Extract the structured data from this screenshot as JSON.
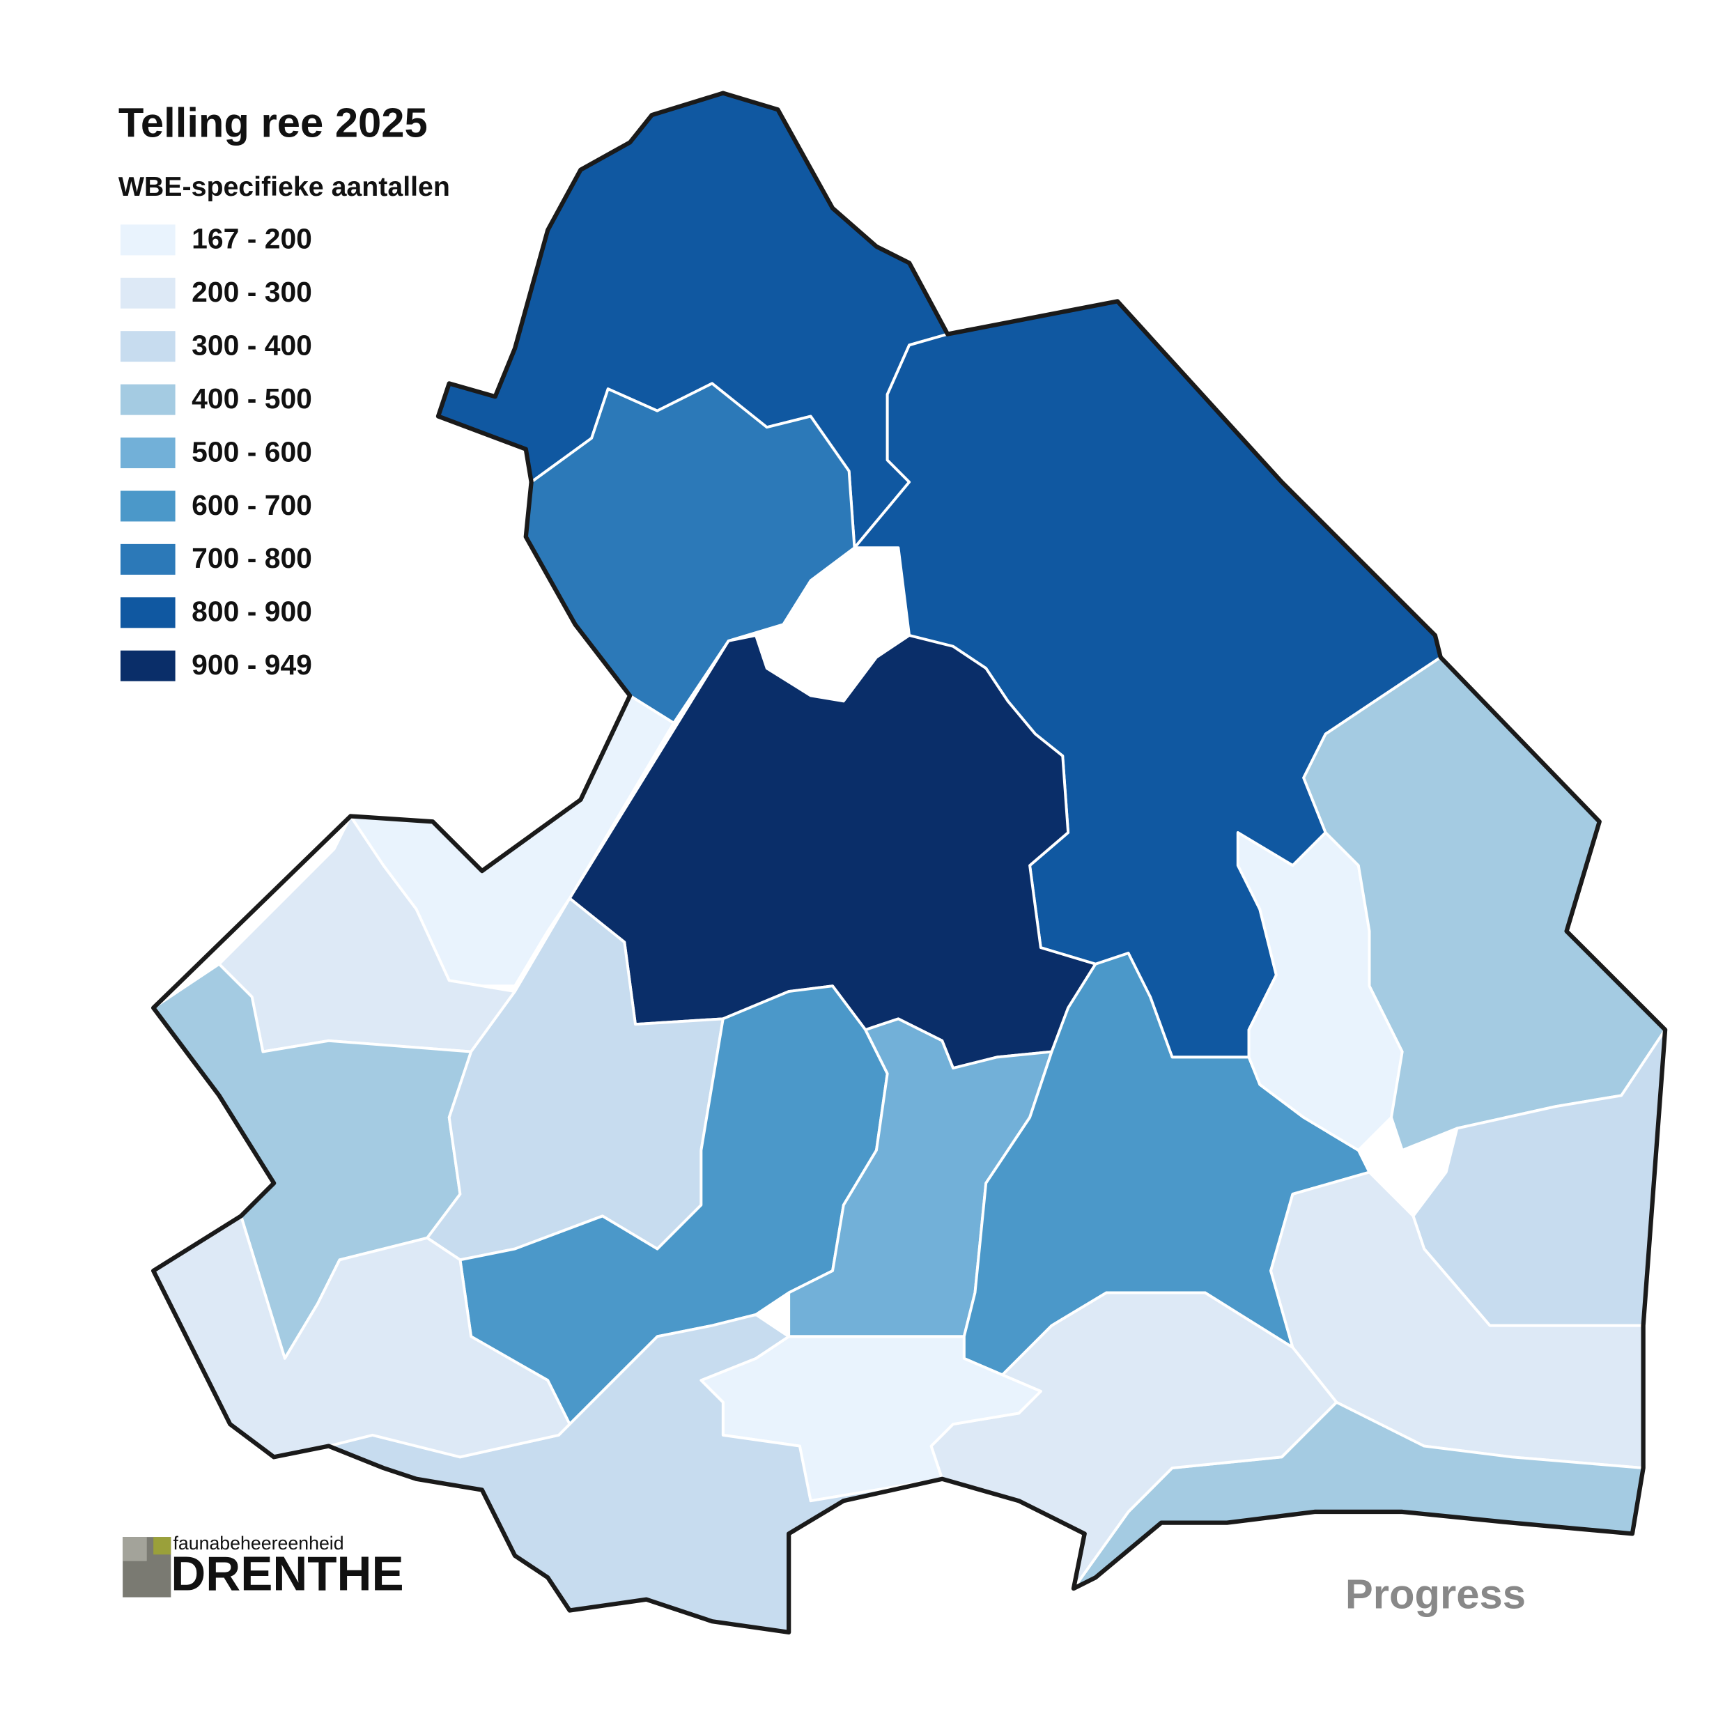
{
  "title": "Telling ree 2025",
  "subtitle": "WBE-specifieke aantallen",
  "legend": [
    {
      "label": "167 - 200",
      "color": "#e9f3fd"
    },
    {
      "label": "200 - 300",
      "color": "#dde9f6"
    },
    {
      "label": "300 - 400",
      "color": "#c7dcef"
    },
    {
      "label": "400 - 500",
      "color": "#a4cbe2"
    },
    {
      "label": "500 - 600",
      "color": "#72b0d8"
    },
    {
      "label": "600 - 700",
      "color": "#4b98c9"
    },
    {
      "label": "700 - 800",
      "color": "#2c79b8"
    },
    {
      "label": "800 - 900",
      "color": "#1058a1"
    },
    {
      "label": "900 - 949",
      "color": "#0a2e69"
    }
  ],
  "regions": [
    {
      "class": 7
    },
    {
      "class": 6
    },
    {
      "class": 7
    },
    {
      "class": 8
    },
    {
      "class": 0
    },
    {
      "class": 1
    },
    {
      "class": 3
    },
    {
      "class": 2
    },
    {
      "class": 5
    },
    {
      "class": 4
    },
    {
      "class": 5
    },
    {
      "class": 0
    },
    {
      "class": 3
    },
    {
      "class": 2
    },
    {
      "class": 1
    },
    {
      "class": 3
    },
    {
      "class": 1
    },
    {
      "class": 0
    },
    {
      "class": 2
    },
    {
      "class": 1
    }
  ],
  "logos": {
    "fbe_small": "faunabeheereenheid",
    "fbe_large": "DRENTHE",
    "partner": "Progress"
  }
}
